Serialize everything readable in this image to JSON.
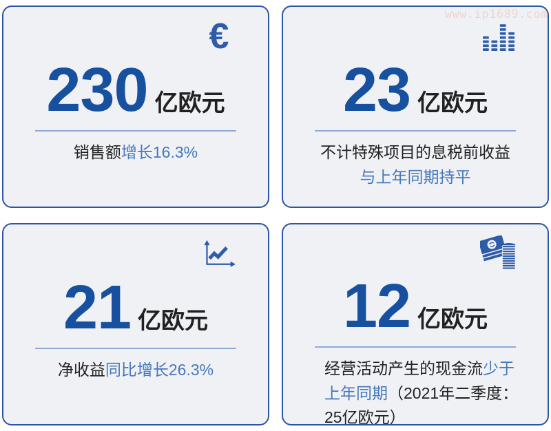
{
  "page": {
    "watermark": "www.ip1689.com"
  },
  "colors": {
    "card_bg": "#eff1f5",
    "card_border": "#2d55a3",
    "accent_dark": "#17509f",
    "accent_icon": "#2e5ca8",
    "accent_light": "#4678ba",
    "text_dark": "#212121",
    "divider": "#8fa9d4",
    "watermark_color": "#eed5ce"
  },
  "cards": [
    {
      "name": "sales",
      "icon": "euro-icon",
      "value": "230",
      "unit": "亿欧元",
      "caption": [
        {
          "text": "销售额"
        },
        {
          "text": "增长16.3%",
          "blue": true
        }
      ]
    },
    {
      "name": "ebit",
      "icon": "equalizer-bars-icon",
      "value": "23",
      "unit": "亿欧元",
      "caption": [
        {
          "text": "不计特殊项目的息税前收益"
        },
        {
          "text": "与上年同期持平",
          "blue": true,
          "newline": true
        }
      ]
    },
    {
      "name": "net-income",
      "icon": "line-chart-icon",
      "value": "21",
      "unit": "亿欧元",
      "caption": [
        {
          "text": "净收益"
        },
        {
          "text": "同比增长26.3%",
          "blue": true
        }
      ]
    },
    {
      "name": "cash-flow",
      "icon": "cash-coins-icon",
      "value": "12",
      "unit": "亿欧元",
      "caption": [
        {
          "text": "经营活动产生的现金流"
        },
        {
          "text": "少于",
          "blue": true
        },
        {
          "text": "上年同期",
          "blue": true,
          "newline": true
        },
        {
          "text": "（2021年二季度："
        },
        {
          "text": "25亿欧元）",
          "newline": true
        }
      ]
    }
  ],
  "chart_data": {
    "type": "table",
    "title": "",
    "columns": [
      "value",
      "unit",
      "description"
    ],
    "metrics": [
      {
        "value": 230,
        "unit": "亿欧元",
        "description": "销售额增长16.3%"
      },
      {
        "value": 23,
        "unit": "亿欧元",
        "description": "不计特殊项目的息税前收益与上年同期持平"
      },
      {
        "value": 21,
        "unit": "亿欧元",
        "description": "净收益同比增长26.3%"
      },
      {
        "value": 12,
        "unit": "亿欧元",
        "description": "经营活动产生的现金流少于上年同期（2021年二季度：25亿欧元）"
      }
    ]
  }
}
